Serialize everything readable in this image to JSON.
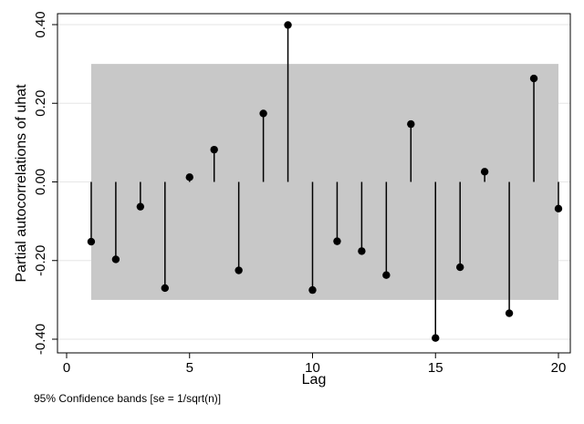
{
  "chart_data": {
    "type": "scatter",
    "subtype": "partial-autocorrelation-spikes",
    "ylabel": "Partial autocorrelations of uhat",
    "xlabel": "Lag",
    "xlim": [
      0,
      20
    ],
    "ylim": [
      -0.4,
      0.4
    ],
    "xticks": [
      0,
      5,
      10,
      15,
      20
    ],
    "yticks": [
      -0.4,
      -0.2,
      0.0,
      0.2,
      0.4
    ],
    "ytick_labels": [
      "-0.40",
      "-0.20",
      "0.00",
      "0.20",
      "0.40"
    ],
    "confidence_band": {
      "lower": -0.3,
      "upper": 0.3,
      "from_lag": 1,
      "to_lag": 20
    },
    "lags": [
      1,
      2,
      3,
      4,
      5,
      6,
      7,
      8,
      9,
      10,
      11,
      12,
      13,
      14,
      15,
      16,
      17,
      18,
      19,
      20
    ],
    "values": [
      -0.152,
      -0.197,
      -0.063,
      -0.27,
      0.012,
      0.082,
      -0.225,
      0.174,
      0.399,
      -0.275,
      -0.151,
      -0.176,
      -0.237,
      0.147,
      -0.397,
      -0.217,
      0.026,
      -0.334,
      0.263,
      -0.068
    ],
    "note": "95% Confidence bands [se = 1/sqrt(n)]",
    "colors": {
      "band": "#c8c8c8",
      "marker": "#000000",
      "grid": "#e6e6e6"
    }
  }
}
